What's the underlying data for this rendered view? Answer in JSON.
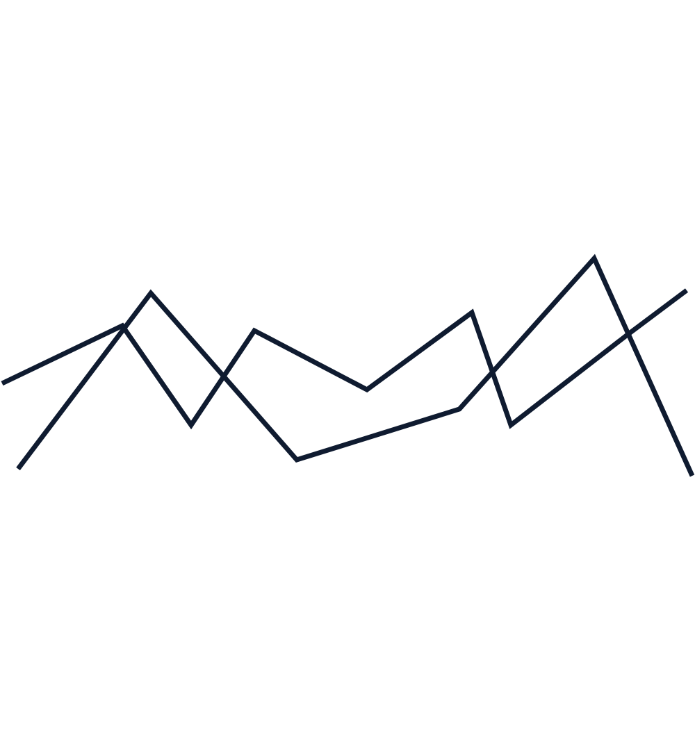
{
  "graphic": {
    "stroke_color": "#0f1b30",
    "background_color": "#ffffff",
    "line_count": 2
  }
}
